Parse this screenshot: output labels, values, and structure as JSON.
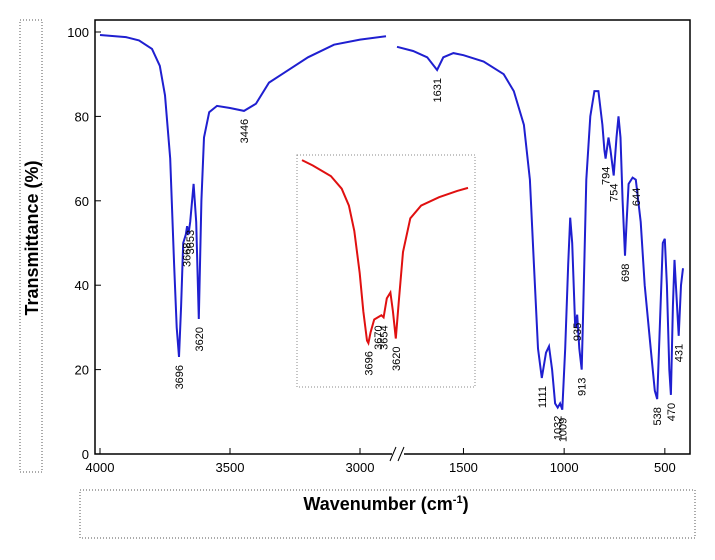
{
  "chart_data": [
    {
      "type": "line",
      "ylabel": "Transmittance (%)",
      "xlabel": {
        "text": "Wavenumber (cm",
        "sup": "-1",
        "end": ")"
      },
      "xlim": [
        4000,
        385
      ],
      "xbreak": [
        2850,
        1830
      ],
      "xticks": [
        4000,
        3500,
        3000,
        1500,
        1000,
        500
      ],
      "ylim": [
        0,
        100
      ],
      "yticks": [
        0,
        20,
        40,
        60,
        80,
        100
      ],
      "x": [
        4000,
        3900,
        3850,
        3800,
        3770,
        3750,
        3730,
        3715,
        3705,
        3696,
        3688,
        3680,
        3670,
        3665,
        3660,
        3653,
        3640,
        3630,
        3620,
        3610,
        3600,
        3580,
        3550,
        3500,
        3446,
        3400,
        3350,
        3300,
        3200,
        3100,
        3000,
        2900,
        2850,
        1830,
        1750,
        1680,
        1631,
        1600,
        1550,
        1500,
        1400,
        1300,
        1250,
        1200,
        1170,
        1150,
        1130,
        1111,
        1090,
        1075,
        1060,
        1045,
        1032,
        1020,
        1009,
        995,
        980,
        970,
        960,
        945,
        935,
        925,
        913,
        905,
        890,
        870,
        850,
        830,
        810,
        800,
        794,
        780,
        770,
        754,
        740,
        730,
        720,
        710,
        698,
        690,
        680,
        660,
        644,
        620,
        600,
        570,
        550,
        538,
        525,
        510,
        500,
        490,
        478,
        470,
        460,
        452,
        445,
        431,
        420,
        410
      ],
      "series": [
        {
          "name": "spectrum",
          "color": "#1f1fd0",
          "values": [
            99.3,
            98.8,
            98,
            96,
            92,
            85,
            70,
            45,
            30,
            23,
            35,
            50,
            52,
            54,
            52,
            55,
            64,
            55,
            32,
            60,
            75,
            81,
            82.5,
            82,
            81.3,
            83,
            88,
            90,
            94,
            97,
            98.2,
            99,
            null,
            96.5,
            95.5,
            94,
            91,
            94,
            95,
            94.5,
            93,
            90,
            86,
            78,
            65,
            45,
            25,
            18,
            24,
            25.5,
            20,
            12,
            11,
            12,
            10.5,
            25,
            45,
            56,
            50,
            30,
            33,
            25,
            20,
            35,
            65,
            80,
            86,
            86,
            78,
            72,
            70,
            75,
            72,
            66,
            75,
            80,
            75,
            60,
            47,
            55,
            64,
            65.5,
            65,
            55,
            40,
            25,
            15,
            13,
            30,
            50,
            51,
            40,
            20,
            14,
            35,
            46,
            40,
            28,
            40,
            44
          ]
        }
      ],
      "annotations": [
        {
          "text": "3696",
          "x": 3696
        },
        {
          "text": "3668",
          "x": 3668
        },
        {
          "text": "3653",
          "x": 3653
        },
        {
          "text": "3620",
          "x": 3620
        },
        {
          "text": "3446",
          "x": 3446
        },
        {
          "text": "1631",
          "x": 1631
        },
        {
          "text": "1111",
          "x": 1111
        },
        {
          "text": "1032",
          "x": 1032
        },
        {
          "text": "1009",
          "x": 1009
        },
        {
          "text": "935",
          "x": 935
        },
        {
          "text": "913",
          "x": 913
        },
        {
          "text": "794",
          "x": 794
        },
        {
          "text": "754",
          "x": 754
        },
        {
          "text": "698",
          "x": 698
        },
        {
          "text": "644",
          "x": 644
        },
        {
          "text": "538",
          "x": 538
        },
        {
          "text": "470",
          "x": 470
        },
        {
          "text": "431",
          "x": 431
        }
      ]
    },
    {
      "type": "line",
      "xlim": [
        3880,
        3420
      ],
      "ylim": [
        20,
        75
      ],
      "x": [
        3880,
        3850,
        3800,
        3770,
        3750,
        3735,
        3720,
        3710,
        3700,
        3696,
        3690,
        3680,
        3670,
        3660,
        3654,
        3645,
        3635,
        3628,
        3620,
        3612,
        3600,
        3580,
        3550,
        3500,
        3450,
        3420
      ],
      "series": [
        {
          "name": "inset",
          "color": "#e01010",
          "values": [
            73.8,
            72.5,
            70,
            67,
            63,
            57,
            47,
            38,
            31,
            30.4,
            33,
            36,
            36.5,
            37,
            36.5,
            41,
            42.4,
            38,
            31.5,
            40,
            52,
            60,
            63,
            65,
            66.5,
            67.2
          ]
        }
      ],
      "annotations": [
        {
          "text": "3670",
          "x": 3670
        },
        {
          "text": "3696",
          "x": 3696
        },
        {
          "text": "3620",
          "x": 3620
        },
        {
          "text": "3654",
          "x": 3654
        }
      ]
    }
  ]
}
